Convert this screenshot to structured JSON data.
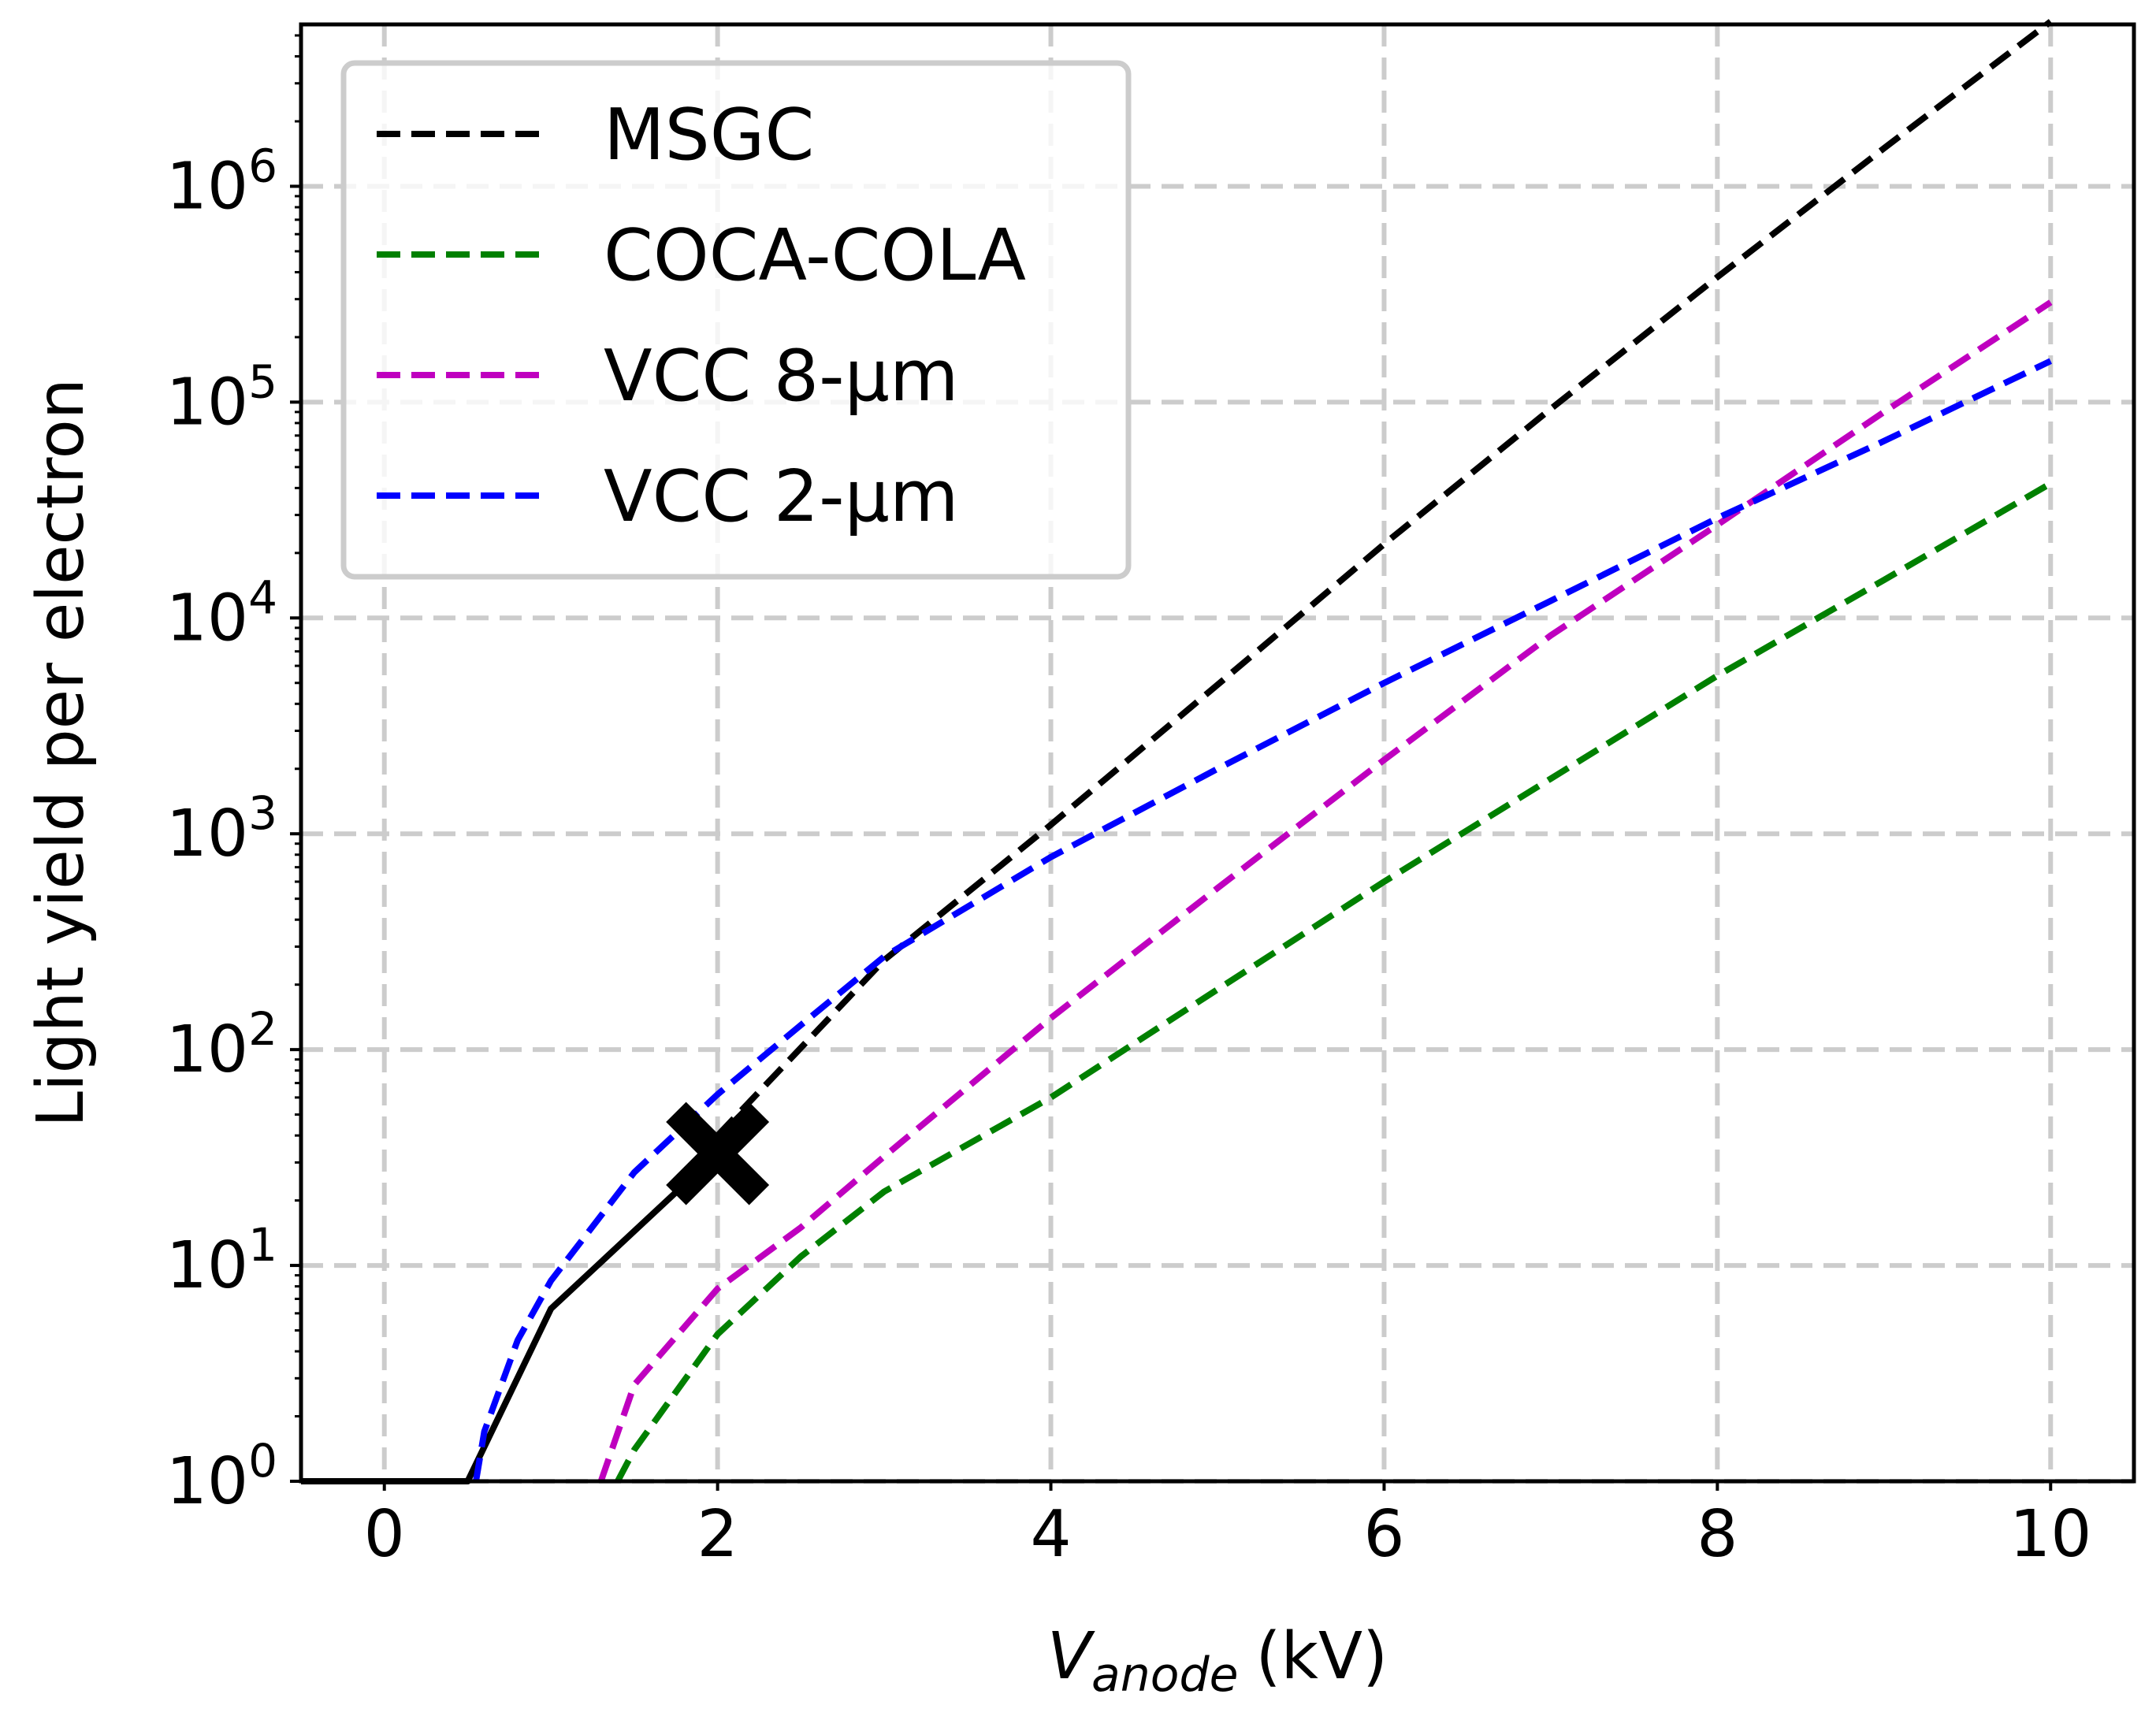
{
  "chart_data": {
    "type": "line",
    "title": "",
    "xlabel": "(kV)",
    "xlabel_symbol": "V",
    "xlabel_subscript": "anode",
    "ylabel": "Light yield per electron",
    "xlim": [
      -0.5,
      10.5
    ],
    "ylim_exponent": [
      0,
      6.75
    ],
    "yscale": "log",
    "grid": true,
    "legend_position": "top-left",
    "x_ticks": [
      0,
      2,
      4,
      6,
      8,
      10
    ],
    "y_ticks": [
      {
        "exponent": 0,
        "base": "10",
        "exp_label": "0"
      },
      {
        "exponent": 1,
        "base": "10",
        "exp_label": "1"
      },
      {
        "exponent": 2,
        "base": "10",
        "exp_label": "2"
      },
      {
        "exponent": 3,
        "base": "10",
        "exp_label": "3"
      },
      {
        "exponent": 4,
        "base": "10",
        "exp_label": "4"
      },
      {
        "exponent": 5,
        "base": "10",
        "exp_label": "5"
      },
      {
        "exponent": 6,
        "base": "10",
        "exp_label": "6"
      }
    ],
    "series": [
      {
        "name": "MSGC",
        "legend_label": "MSGC",
        "color": "#000000",
        "style": "dashed",
        "x": [
          2,
          3,
          4,
          5,
          6,
          7,
          8,
          9,
          10
        ],
        "y": [
          40,
          260,
          1100,
          4900,
          22000,
          93000,
          380000,
          1500000,
          5800000
        ]
      },
      {
        "name": "MSGC (measured)",
        "legend_label": "",
        "color": "#000000",
        "style": "solid",
        "x": [
          -0.5,
          0.5,
          1.0,
          2.0
        ],
        "y": [
          1,
          1,
          6.3,
          33
        ]
      },
      {
        "name": "COCA-COLA",
        "legend_label": "COCA-COLA",
        "color": "#008000",
        "style": "dashed",
        "x": [
          1.4,
          1.5,
          2.0,
          2.5,
          3.0,
          4.0,
          5.0,
          6.0,
          7.0,
          8.0,
          9.0,
          10.0
        ],
        "y": [
          1,
          1.4,
          4.8,
          11,
          22,
          60,
          190,
          600,
          1800,
          5400,
          15000,
          42000
        ]
      },
      {
        "name": "VCC 8-um",
        "legend_label": "VCC 8-μm",
        "color": "#bf00bf",
        "style": "dashed",
        "x": [
          1.3,
          1.5,
          2.0,
          2.5,
          3.0,
          4.0,
          5.0,
          6.0,
          7.0,
          8.0,
          9.0,
          10.0
        ],
        "y": [
          1,
          2.8,
          7.8,
          15,
          32,
          140,
          560,
          2200,
          8300,
          27000,
          90000,
          290000
        ]
      },
      {
        "name": "VCC 2-um",
        "legend_label": "VCC 2-μm",
        "color": "#0000ff",
        "style": "dashed",
        "x": [
          0.55,
          0.6,
          0.8,
          1.0,
          1.5,
          2.0,
          2.5,
          3.0,
          4.0,
          5.0,
          6.0,
          7.0,
          8.0,
          9.0,
          10.0
        ],
        "y": [
          1,
          1.7,
          4.5,
          8.5,
          27,
          62,
          130,
          270,
          780,
          2000,
          5000,
          12000,
          29000,
          66000,
          155000
        ]
      }
    ],
    "markers": [
      {
        "name": "MSGC operating point",
        "x": 2.0,
        "y": 33,
        "symbol": "X",
        "color": "#000000"
      }
    ]
  }
}
